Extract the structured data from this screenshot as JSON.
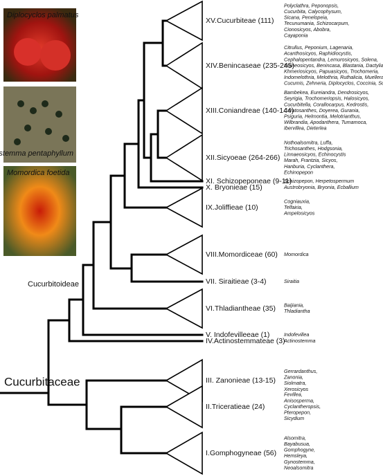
{
  "root_label": "Cucurbitaceae",
  "subfamily_label": "Cucurbitoideae",
  "photos": [
    {
      "caption": "Diplocyclos palmatus"
    },
    {
      "caption": "Gynostemma pentaphyllum"
    },
    {
      "caption": "Momordica foetida"
    }
  ],
  "tribes": [
    {
      "label": "XV.Cucurbiteae (111)",
      "genera": [
        "Polyclathra, Peponopsis,",
        "Cucurbita, Calycophysum,",
        "Sicana, Penelopeia,",
        "Tecunumania, Schizocarpum,",
        "Cionosicyos, Abobra,",
        "Cayaponia"
      ]
    },
    {
      "label": "XIV.Benincaseae (235-245)",
      "genera": [
        "Citrullus, Peponium, Lagenaria,",
        "Acanthosicyos, Raphidiocystis,",
        "Cephalopentandra, Lemurosicyos, Solena,",
        "Borneosicyos, Benincasa, Blastania, Dactyliandra,",
        "Khmeriosicyos, Papuasicyos, Trochomeria,",
        "Indomelothria, Melothria, Ruthalicia, Muellerargia,",
        "Cucumis, Zehneria, Diplocyclos, Coccinia, Scopellaria"
      ]
    },
    {
      "label": "XIII.Coniandreae (140-144)",
      "genera": [
        "Bambekea, Eureiandra, Dendrosicyos,",
        "Seyrigia, Trochomeriopsis, Halosicyos,",
        "Cucurbitella, Corallocarpus, Kedrostis,",
        "Ceratosanthes, Doyerea, Gurania,",
        "Psiguria, Helmontia, Melotrianthus,",
        "Wilbrandia, Apodanthera, Tumamoca,",
        "Ibervillea, Dieterlea"
      ]
    },
    {
      "label": "XII.Sicyoeae (264-266)",
      "genera": [
        "Nothoalsomitra, Luffa,",
        "Trichosanthes, Hodgsonia,",
        "Linnaeosicyos, Echinocystis",
        "Marah, Frantzia, Sicyos,",
        "Hanburia, Cyclanthera,",
        "Echinopepon"
      ]
    },
    {
      "label": "XI. Schizopeponeae (9-11)",
      "genera": [
        "Schizopepon, Herpetospermum"
      ]
    },
    {
      "label": "X. Bryonieae (15)",
      "genera": [
        "Austrobryonia, Bryonia, Ecballium"
      ]
    },
    {
      "label": "IX.Joliffieae (10)",
      "genera": [
        "Cogniauxia,",
        "Telfairia,",
        "Ampelosicyos"
      ]
    },
    {
      "label": "VIII.Momordiceae (60)",
      "genera": [
        "Momordica"
      ]
    },
    {
      "label": "VII. Siraitieae (3-4)",
      "genera": [
        "Siraitia"
      ]
    },
    {
      "label": "VI.Thladiantheae (35)",
      "genera": [
        "Baijiania,",
        "Thladiantha"
      ]
    },
    {
      "label": "V. Indofevilleeae (1)",
      "genera": [
        "Indofevillea"
      ]
    },
    {
      "label": "IV.Actinostemmateae (3)",
      "genera": [
        "Actinostemma"
      ]
    },
    {
      "label": "III. Zanonieae (13-15)",
      "genera": [
        "Gerrardanthus,",
        "Zanonia,",
        "Siolmatra,",
        "Xerosicyos"
      ]
    },
    {
      "label": "II.Triceratieae (24)",
      "genera": [
        "Fevillea,",
        "Anisosperma,",
        "Cyclantheropsis,",
        "Pteropepon,",
        "Sicydium"
      ]
    },
    {
      "label": "I.Gomphogyneae (56)",
      "genera": [
        "Alsomitra,",
        "Bayabusua,",
        "Gomphogyne,",
        "Hemsleya,",
        "Gynostemma,",
        "Neoalsomitra"
      ]
    }
  ]
}
